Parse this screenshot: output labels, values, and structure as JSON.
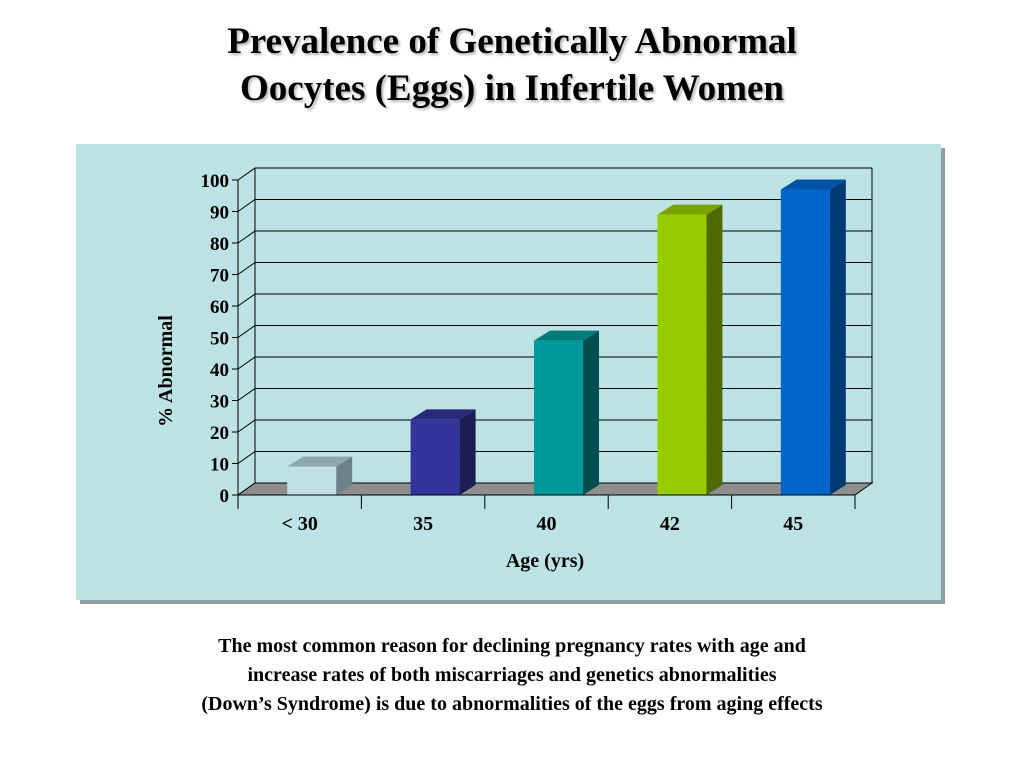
{
  "title": {
    "line1": "Prevalence of Genetically Abnormal",
    "line2": "Oocytes (Eggs) in Infertile Women"
  },
  "caption": {
    "line1": "The most common reason for declining pregnancy rates with age and",
    "line2": "increase rates of both miscarriages and genetics abnormalities",
    "line3": "(Down’s Syndrome) is due to abnormalities of the eggs from aging effects"
  },
  "chart_data": {
    "type": "bar",
    "title": "Prevalence of Genetically Abnormal Oocytes (Eggs) in Infertile Women",
    "xlabel": "Age (yrs)",
    "ylabel": "% Abnormal",
    "categories": [
      "< 30",
      "35",
      "40",
      "42",
      "45"
    ],
    "values": [
      9,
      24,
      49,
      89,
      97
    ],
    "ylim": [
      0,
      100
    ],
    "yticks": [
      0,
      10,
      20,
      30,
      40,
      50,
      60,
      70,
      80,
      90,
      100
    ],
    "grid": true,
    "legend": "none",
    "style": "3d",
    "bar_colors": [
      {
        "front": "#c2dfe6",
        "side": "#6b8387",
        "top": "#8ea8ac"
      },
      {
        "front": "#333399",
        "side": "#1d1d55",
        "top": "#29297a"
      },
      {
        "front": "#009999",
        "side": "#005050",
        "top": "#007a7a"
      },
      {
        "front": "#99cc00",
        "side": "#4d6a00",
        "top": "#7ba300"
      },
      {
        "front": "#0066cc",
        "side": "#003a75",
        "top": "#0052a3"
      }
    ],
    "floor_color": "#8e8e8e"
  }
}
